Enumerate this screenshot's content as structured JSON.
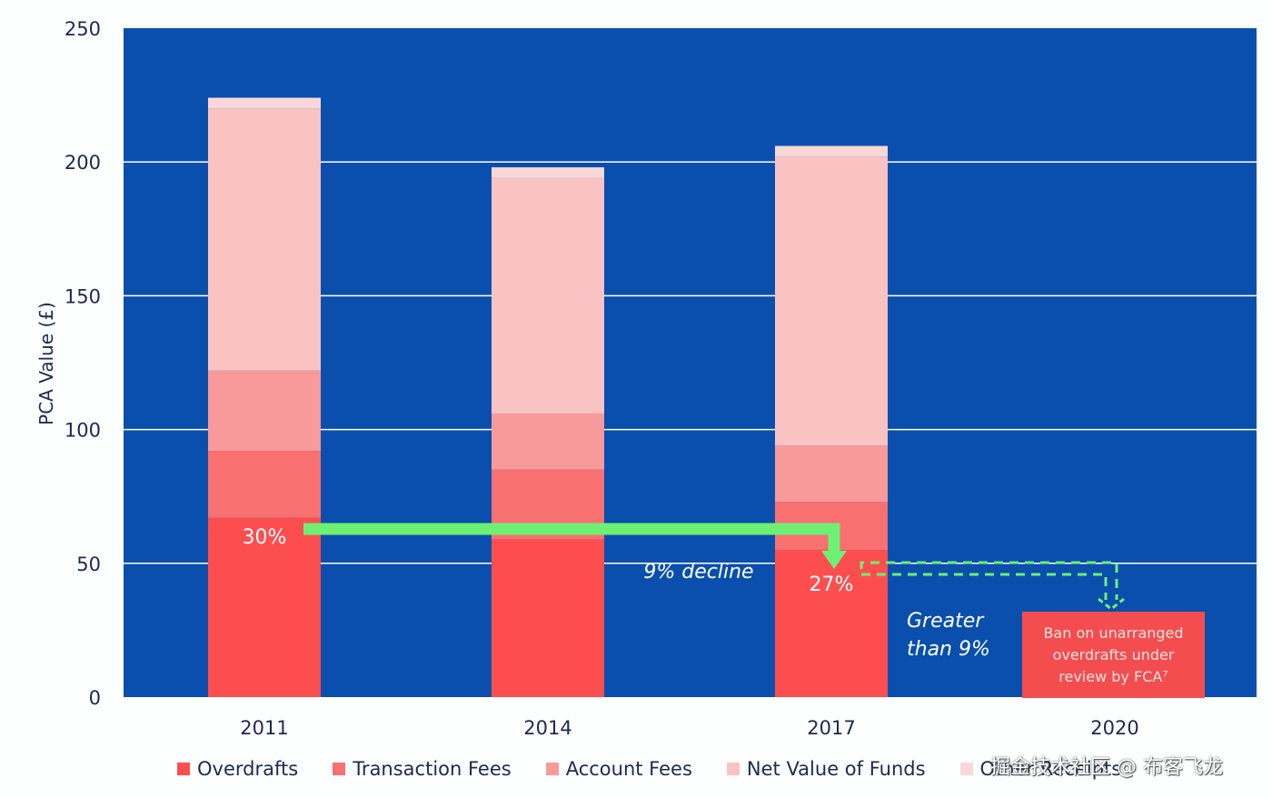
{
  "chart_data": {
    "type": "bar",
    "stacked": true,
    "title": "",
    "xlabel": "",
    "ylabel": "PCA Value (£)",
    "ylim": [
      0,
      250
    ],
    "yticks": [
      0,
      50,
      100,
      150,
      200,
      250
    ],
    "categories": [
      "2011",
      "2014",
      "2017",
      "2020"
    ],
    "grid": true,
    "legend_position": "bottom",
    "series": [
      {
        "name": "Overdrafts",
        "color": "#fd4e4f",
        "values": [
          67,
          59,
          55,
          null
        ]
      },
      {
        "name": "Transaction Fees",
        "color": "#f87070",
        "values": [
          25,
          26,
          18,
          null
        ]
      },
      {
        "name": "Account Fees",
        "color": "#f99a9a",
        "values": [
          30,
          21,
          21,
          null
        ]
      },
      {
        "name": "Net Value of Funds",
        "color": "#fac3c3",
        "values": [
          98,
          88,
          108,
          null
        ]
      },
      {
        "name": "Other Receipts",
        "color": "#f8d8d8",
        "values": [
          4,
          4,
          4,
          null
        ]
      }
    ],
    "bar_labels": [
      {
        "category": "2011",
        "text": "30%"
      },
      {
        "category": "2017",
        "text": "27%"
      }
    ],
    "annotations": {
      "decline": "9% decline",
      "greater_line1": "Greater",
      "greater_line2": "than 9%",
      "callout_lines": [
        "Ban on unarranged",
        "overdrafts under",
        "review by FCA⁷"
      ]
    },
    "plot_background": "#0a4fad",
    "arrow_color": "#6ef073"
  },
  "watermark": "掘金技术社区 @ 布客飞龙"
}
